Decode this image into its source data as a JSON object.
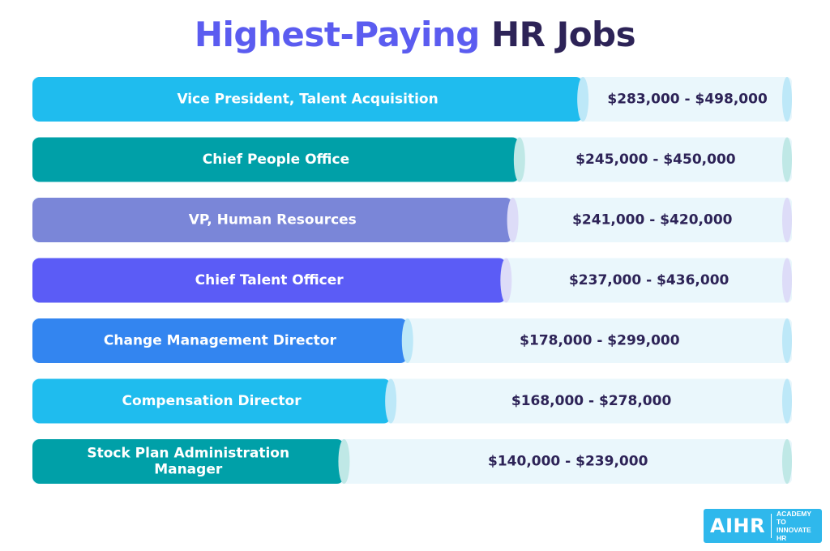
{
  "title": {
    "part1": "Highest-Paying",
    "part2": "HR Jobs"
  },
  "colors": {
    "title_accent": "#5b5cf0",
    "title_dark": "#2d2357",
    "track": "#eaf7fc",
    "range_text": "#2d2357"
  },
  "chart_data": {
    "type": "bar",
    "orientation": "horizontal",
    "title": "Highest-Paying HR Jobs",
    "categories": [
      "Vice President, Talent Acquisition",
      "Chief People Office",
      "VP, Human Resources",
      "Chief Talent Officer",
      "Change Management Director",
      "Compensation Director",
      "Stock Plan Administration Manager"
    ],
    "bar_label_lines": [
      [
        "Vice President, Talent Acquisition"
      ],
      [
        "Chief People Office"
      ],
      [
        "VP, Human Resources"
      ],
      [
        "Chief Talent Officer"
      ],
      [
        "Change Management Director"
      ],
      [
        "Compensation Director"
      ],
      [
        "Stock Plan Administration",
        "Manager"
      ]
    ],
    "range_labels": [
      "$283,000 - $498,000",
      "$245,000 - $450,000",
      "$241,000 - $420,000",
      "$237,000 - $436,000",
      "$178,000 - $299,000",
      "$168,000 - $278,000",
      "$140,000 - $239,000"
    ],
    "series": [
      {
        "values": [
          283000,
          245000,
          241000,
          237000,
          178000,
          168000,
          140000
        ]
      },
      {
        "values": [
          498000,
          450000,
          420000,
          436000,
          299000,
          278000,
          239000
        ]
      }
    ],
    "bar_colors": [
      "#1fbcee",
      "#00a0a8",
      "#7a86d8",
      "#5b5cf6",
      "#3385f0",
      "#1fbcee",
      "#00a0a8"
    ],
    "cap_colors": [
      "#bde8f8",
      "#bfe8e6",
      "#dddcf8",
      "#dddcf8",
      "#bde8f8",
      "#bde8f8",
      "#bfe8e6"
    ]
  },
  "logo": {
    "name": "AIHR",
    "tagline_line1": "ACADEMY TO",
    "tagline_line2": "INNOVATE HR"
  }
}
